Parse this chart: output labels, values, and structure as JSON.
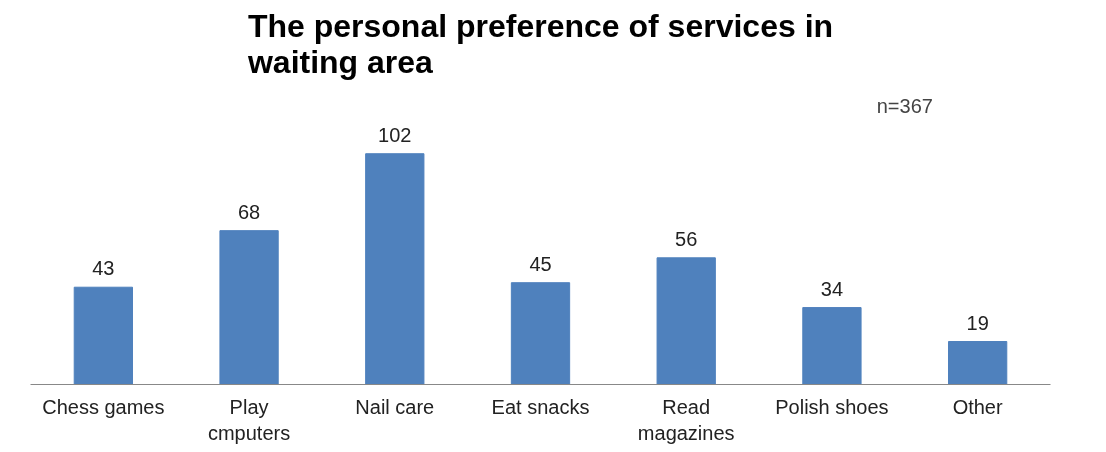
{
  "chart_data": {
    "type": "bar",
    "title": "The personal preference of services in waiting area",
    "categories": [
      "Chess games",
      "Play cmputers",
      "Nail care",
      "Eat snacks",
      "Read magazines",
      "Polish shoes",
      "Other"
    ],
    "values": [
      43,
      68,
      102,
      45,
      56,
      34,
      19
    ],
    "color": "#4f81bd",
    "data_labels": true,
    "grid": false,
    "tick_labels": "x",
    "annotations": [
      "n=367"
    ]
  }
}
